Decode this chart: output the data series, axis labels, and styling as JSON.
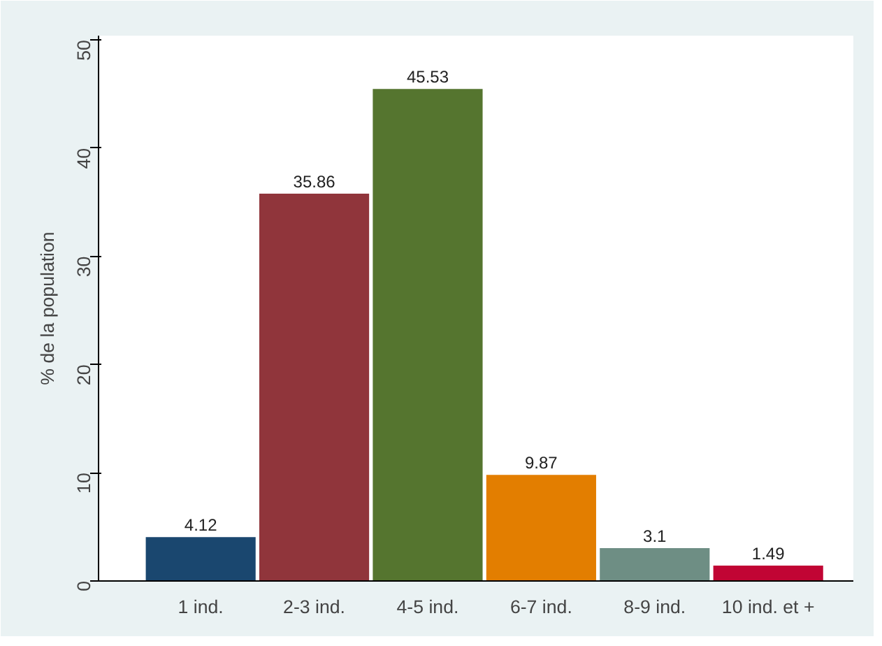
{
  "chart_data": {
    "type": "bar",
    "ylabel": "% de la population",
    "categories": [
      "1 ind.",
      "2-3 ind.",
      "4-5 ind.",
      "6-7 ind.",
      "8-9 ind.",
      "10 ind. et +"
    ],
    "values": [
      4.12,
      35.86,
      45.53,
      9.87,
      3.1,
      1.49
    ],
    "colors": [
      "#1a476f",
      "#90353b",
      "#55752f",
      "#e37e00",
      "#6e8e84",
      "#c10534"
    ],
    "ylim": [
      0,
      50.4
    ],
    "yticks": [
      0,
      10,
      20,
      30,
      40,
      50
    ],
    "data_labels": true,
    "grid": false
  }
}
